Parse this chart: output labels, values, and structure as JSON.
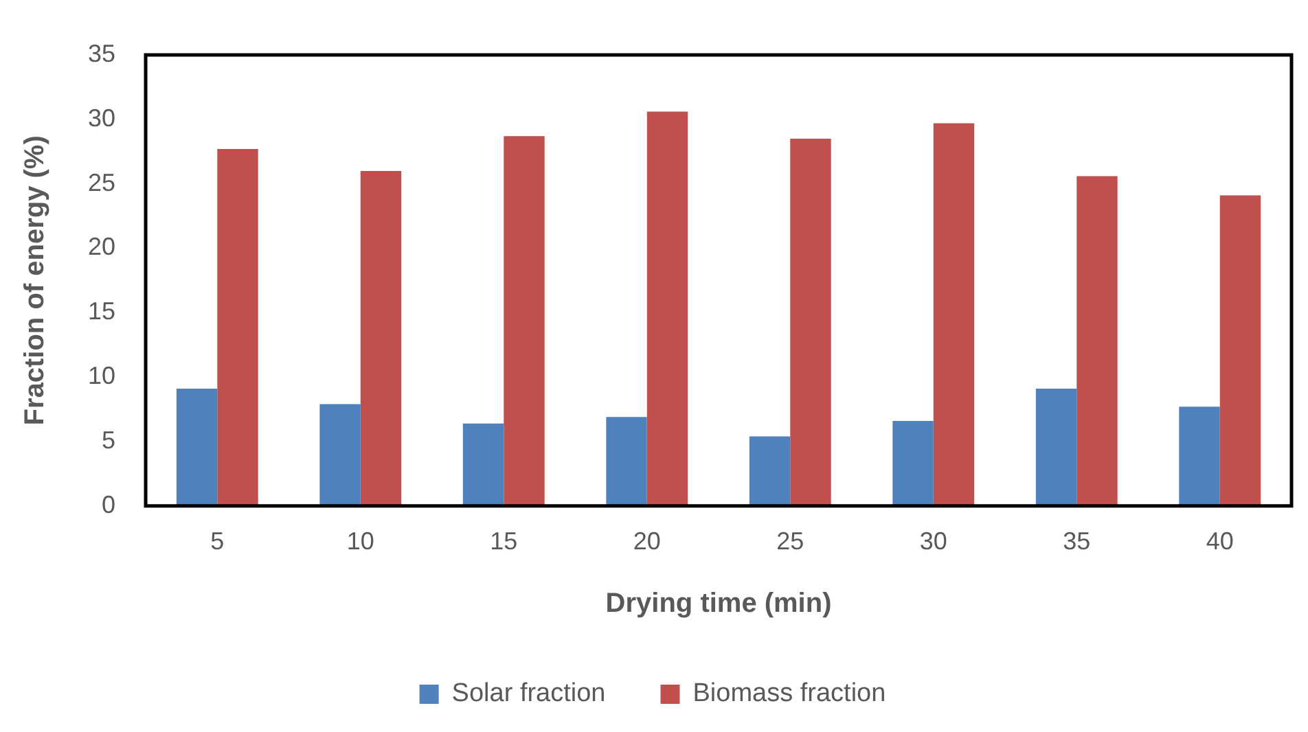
{
  "chart_data": {
    "type": "bar",
    "xlabel": "Drying time (min)",
    "ylabel": "Fraction of energy (%)",
    "categories": [
      "5",
      "10",
      "15",
      "20",
      "25",
      "30",
      "35",
      "40"
    ],
    "series": [
      {
        "name": "Solar fraction",
        "color": "#4f81bd",
        "values": [
          9.1,
          7.9,
          6.4,
          6.9,
          5.4,
          6.6,
          9.1,
          7.7
        ]
      },
      {
        "name": "Biomass fraction",
        "color": "#c0504d",
        "values": [
          27.7,
          26.0,
          28.7,
          30.6,
          28.5,
          29.7,
          25.6,
          24.1
        ]
      }
    ],
    "ylim": [
      0,
      35
    ],
    "yticks": [
      0,
      5,
      10,
      15,
      20,
      25,
      30,
      35
    ],
    "grid": false,
    "legend": "bottom"
  }
}
